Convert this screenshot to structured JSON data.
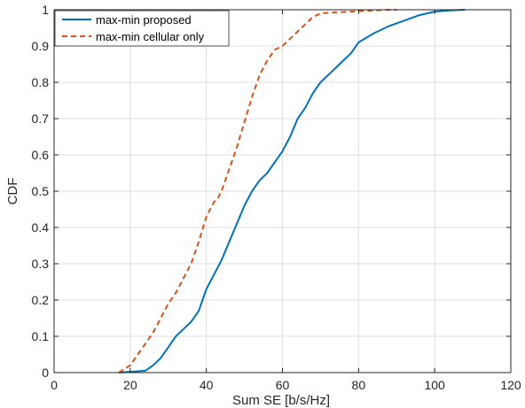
{
  "chart_data": {
    "type": "line",
    "xlabel": "Sum SE [b/s/Hz]",
    "ylabel": "CDF",
    "xlim": [
      0,
      120
    ],
    "ylim": [
      0,
      1
    ],
    "x_ticks": [
      0,
      20,
      40,
      60,
      80,
      100,
      120
    ],
    "x_tick_labels": [
      "0",
      "20",
      "40",
      "60",
      "80",
      "100",
      "120"
    ],
    "y_ticks": [
      0,
      0.1,
      0.2,
      0.3,
      0.4,
      0.5,
      0.6,
      0.7,
      0.8,
      0.9,
      1
    ],
    "y_tick_labels": [
      "0",
      "0.1",
      "0.2",
      "0.3",
      "0.4",
      "0.5",
      "0.6",
      "0.7",
      "0.8",
      "0.9",
      "1"
    ],
    "grid": true,
    "legend_position": "top-left",
    "series": [
      {
        "name": "max-min proposed",
        "color": "#0072BD",
        "style": "solid",
        "x": [
          17,
          24,
          26,
          28,
          30,
          32,
          34,
          36,
          38,
          39,
          40,
          42,
          44,
          46,
          48,
          50,
          52,
          54,
          56,
          58,
          60,
          62,
          64,
          66,
          68,
          70,
          72,
          74,
          76,
          78,
          80,
          84,
          88,
          92,
          96,
          100,
          104,
          108
        ],
        "y": [
          0,
          0.005,
          0.02,
          0.04,
          0.07,
          0.1,
          0.12,
          0.14,
          0.17,
          0.2,
          0.23,
          0.27,
          0.31,
          0.36,
          0.41,
          0.46,
          0.5,
          0.53,
          0.55,
          0.58,
          0.61,
          0.65,
          0.7,
          0.73,
          0.77,
          0.8,
          0.82,
          0.84,
          0.86,
          0.88,
          0.91,
          0.935,
          0.955,
          0.97,
          0.985,
          0.995,
          0.998,
          1
        ]
      },
      {
        "name": "max-min cellular only",
        "color": "#D95319",
        "style": "dashed",
        "x": [
          17,
          20,
          22,
          24,
          26,
          28,
          30,
          32,
          34,
          36,
          38,
          40,
          42,
          43,
          44,
          46,
          48,
          50,
          52,
          54,
          56,
          58,
          60,
          62,
          64,
          66,
          68,
          70,
          74,
          78,
          82,
          86,
          90
        ],
        "y": [
          0,
          0.02,
          0.05,
          0.08,
          0.11,
          0.15,
          0.19,
          0.22,
          0.26,
          0.3,
          0.36,
          0.43,
          0.47,
          0.48,
          0.5,
          0.56,
          0.62,
          0.69,
          0.76,
          0.82,
          0.86,
          0.89,
          0.9,
          0.92,
          0.94,
          0.96,
          0.98,
          0.99,
          0.993,
          0.995,
          0.997,
          0.999,
          1
        ]
      }
    ]
  }
}
